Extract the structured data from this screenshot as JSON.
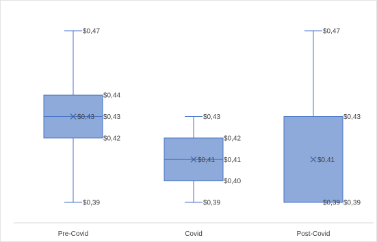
{
  "chart_data": {
    "type": "boxplot",
    "categories": [
      "Pre-Covid",
      "Covid",
      "Post-Covid"
    ],
    "ylim": [
      0.385,
      0.475
    ],
    "grid": false,
    "colors": {
      "box_fill": "#8eaadb",
      "box_stroke": "#4472c4",
      "whisker": "#4472c4",
      "axis": "#d9d9d9",
      "text": "#404040"
    },
    "boxes": [
      {
        "name": "Pre-Covid",
        "min": 0.39,
        "q1": 0.42,
        "median": 0.43,
        "q3": 0.44,
        "max": 0.47,
        "mean": 0.43,
        "labels": {
          "max": "$0,47",
          "q3": "$0,44",
          "median": "$0,43",
          "q1": "$0,42",
          "min": "$0,39",
          "mean": "$0,43"
        }
      },
      {
        "name": "Covid",
        "min": 0.39,
        "q1": 0.4,
        "median": 0.41,
        "q3": 0.42,
        "max": 0.43,
        "mean": 0.41,
        "labels": {
          "max": "$0,43",
          "q3": "$0,42",
          "median": "$0,41",
          "q1": "$0,40",
          "min": "$0,39",
          "mean": "$0,41"
        }
      },
      {
        "name": "Post-Covid",
        "min": 0.39,
        "q1": 0.39,
        "median": 0.39,
        "q3": 0.43,
        "max": 0.47,
        "mean": 0.41,
        "labels": {
          "max": "$0,47",
          "q3": "$0,43",
          "median": "$0,39",
          "q1": "$0,39",
          "min": "$0,39",
          "mean": "$0,41"
        }
      }
    ]
  }
}
